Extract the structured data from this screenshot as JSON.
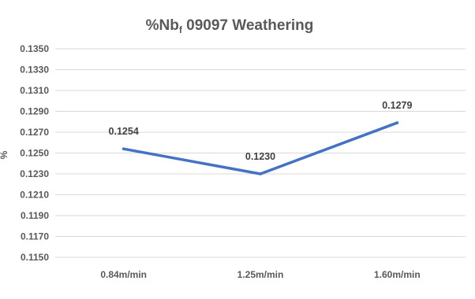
{
  "chart_data": {
    "type": "line",
    "title": "%Nb",
    "title_subscript": "f",
    "title_suffix": " 09097 Weathering",
    "xlabel": "",
    "ylabel": "%",
    "categories": [
      "0.84m/min",
      "1.25m/min",
      "1.60m/min"
    ],
    "series": [
      {
        "values": [
          0.1254,
          0.123,
          0.1279
        ],
        "data_labels": [
          "0.1254",
          "0.1230",
          "0.1279"
        ],
        "color": "#4472c4"
      }
    ],
    "ylim": [
      0.115,
      0.135
    ],
    "yticks": [
      0.115,
      0.117,
      0.119,
      0.121,
      0.123,
      0.125,
      0.127,
      0.129,
      0.131,
      0.133,
      0.135
    ],
    "ytick_labels": [
      "0.1150",
      "0.1170",
      "0.1190",
      "0.1210",
      "0.1230",
      "0.1250",
      "0.1270",
      "0.1290",
      "0.1310",
      "0.1330",
      "0.1350"
    ],
    "grid": true,
    "legend": "none"
  }
}
